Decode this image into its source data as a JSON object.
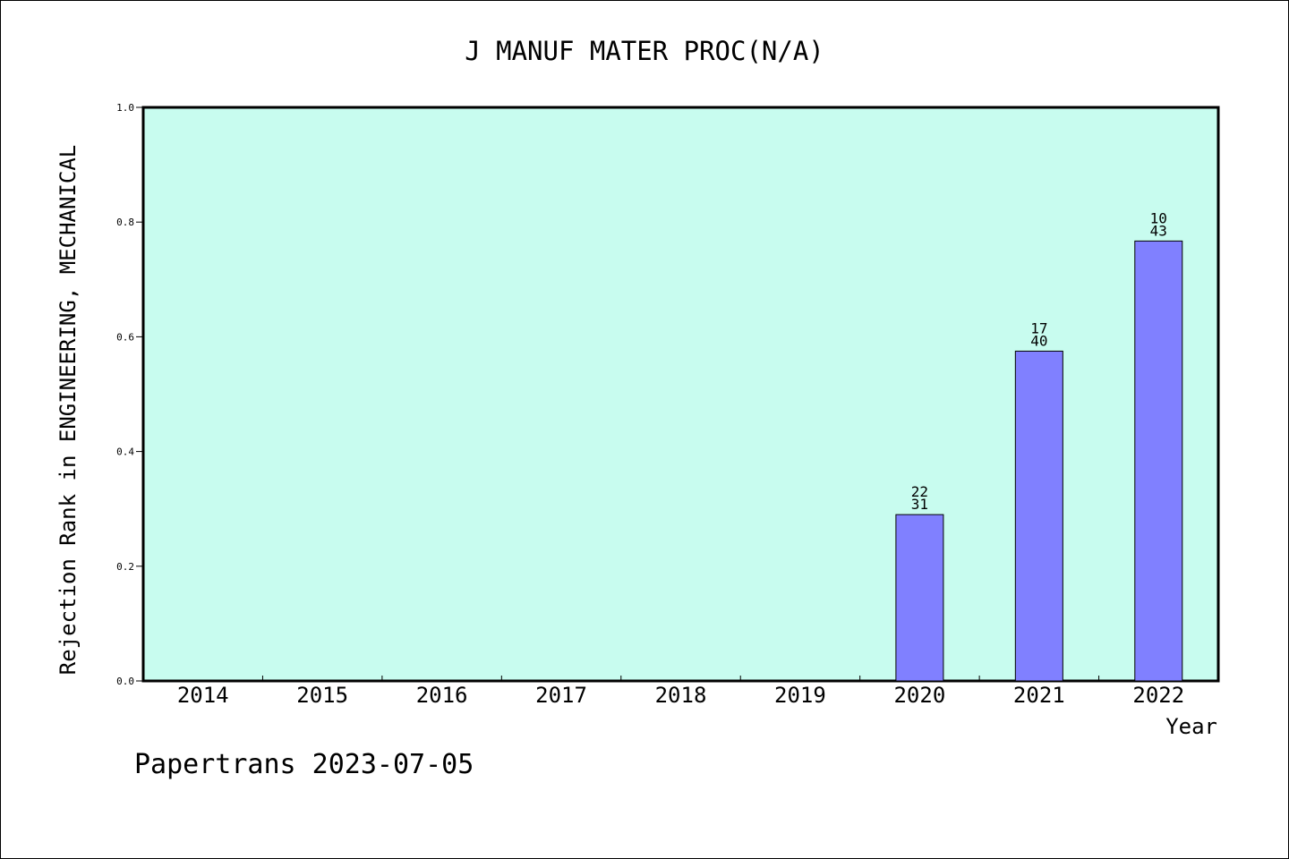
{
  "chart_data": {
    "type": "bar",
    "title": "J MANUF MATER PROC(N/A)",
    "xlabel": "Year",
    "ylabel": "Rejection Rank in ENGINEERING, MECHANICAL",
    "categories": [
      "2014",
      "2015",
      "2016",
      "2017",
      "2018",
      "2019",
      "2020",
      "2021",
      "2022"
    ],
    "values": [
      null,
      null,
      null,
      null,
      null,
      null,
      0.29,
      0.575,
      0.767
    ],
    "bar_labels": [
      null,
      null,
      null,
      null,
      null,
      null,
      [
        "22",
        "31"
      ],
      [
        "17",
        "40"
      ],
      [
        "10",
        "43"
      ]
    ],
    "ylim": [
      0,
      1.0
    ],
    "yticks": [
      "0.0",
      "0.2",
      "0.4",
      "0.6",
      "0.8",
      "1.0"
    ],
    "grid": false,
    "colors": {
      "plot_bg": "#c8fcef",
      "bar": "#8080ff",
      "axis": "#000000"
    }
  },
  "footer": {
    "credit": "Papertrans 2023-07-05"
  }
}
